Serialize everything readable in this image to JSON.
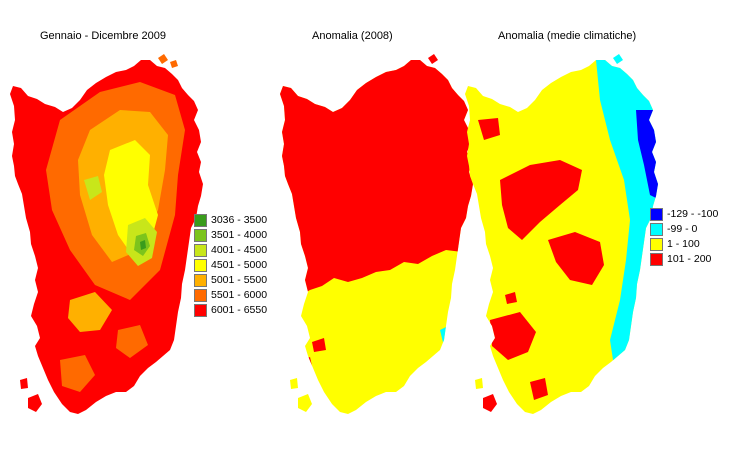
{
  "panels": [
    {
      "title": "Gennaio - Dicembre 2009"
    },
    {
      "title": "Anomalia (2008)"
    },
    {
      "title": "Anomalia (medie climatiche)"
    }
  ],
  "legend_totals": [
    {
      "label": "3036 - 3500",
      "color": "#3a9c1c"
    },
    {
      "label": "3501 - 4000",
      "color": "#7cc41c"
    },
    {
      "label": "4001 - 4500",
      "color": "#c8e61a"
    },
    {
      "label": "4501 - 5000",
      "color": "#ffff00"
    },
    {
      "label": "5001 - 5500",
      "color": "#ffb000"
    },
    {
      "label": "5501 - 6000",
      "color": "#ff6a00"
    },
    {
      "label": "6001 - 6550",
      "color": "#ff0000"
    }
  ],
  "legend_anomaly": [
    {
      "label": "-129 - -100",
      "color": "#0000ff"
    },
    {
      "label": "-99 - 0",
      "color": "#00ffff"
    },
    {
      "label": "1 - 100",
      "color": "#ffff00"
    },
    {
      "label": "101 - 200",
      "color": "#ff0000"
    }
  ]
}
